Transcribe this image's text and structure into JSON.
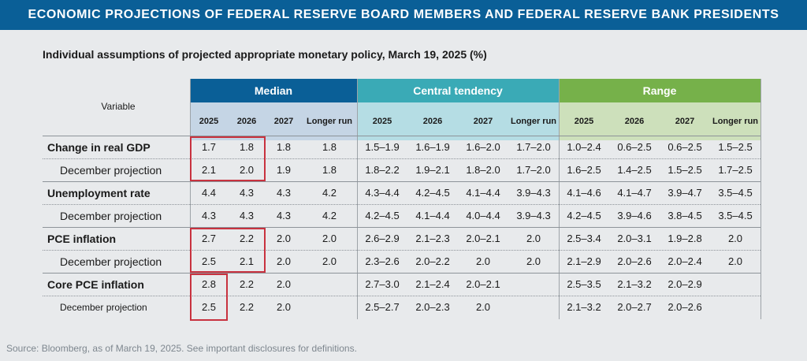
{
  "banner": {
    "title": "ECONOMIC PROJECTIONS OF FEDERAL RESERVE BOARD MEMBERS AND FEDERAL RESERVE BANK PRESIDENTS"
  },
  "subtitle": "Individual assumptions of projected appropriate monetary policy, March 19, 2025 (%)",
  "variable_header": "Variable",
  "source": "Source: Bloomberg, as of March 19, 2025.  See important disclosures for definitions.",
  "chart_data": {
    "type": "table",
    "groups": [
      {
        "name": "Median",
        "color": "#0a5f97",
        "columns": [
          "2025",
          "2026",
          "2027",
          "Longer run"
        ]
      },
      {
        "name": "Central tendency",
        "color": "#3aaab6",
        "columns": [
          "2025",
          "2026",
          "2027",
          "Longer run"
        ]
      },
      {
        "name": "Range",
        "color": "#76b14a",
        "columns": [
          "2025",
          "2026",
          "2027",
          "Longer run"
        ]
      }
    ],
    "rows": [
      {
        "label": "Change in real GDP",
        "bold": true,
        "median": [
          "1.7",
          "1.8",
          "1.8",
          "1.8"
        ],
        "central": [
          "1.5–1.9",
          "1.6–1.9",
          "1.6–2.0",
          "1.7–2.0"
        ],
        "range": [
          "1.0–2.4",
          "0.6–2.5",
          "0.6–2.5",
          "1.5–2.5"
        ]
      },
      {
        "label": "December projection",
        "bold": false,
        "median": [
          "2.1",
          "2.0",
          "1.9",
          "1.8"
        ],
        "central": [
          "1.8–2.2",
          "1.9–2.1",
          "1.8–2.0",
          "1.7–2.0"
        ],
        "range": [
          "1.6–2.5",
          "1.4–2.5",
          "1.5–2.5",
          "1.7–2.5"
        ]
      },
      {
        "label": "Unemployment rate",
        "bold": true,
        "median": [
          "4.4",
          "4.3",
          "4.3",
          "4.2"
        ],
        "central": [
          "4.3–4.4",
          "4.2–4.5",
          "4.1–4.4",
          "3.9–4.3"
        ],
        "range": [
          "4.1–4.6",
          "4.1–4.7",
          "3.9–4.7",
          "3.5–4.5"
        ]
      },
      {
        "label": "December projection",
        "bold": false,
        "median": [
          "4.3",
          "4.3",
          "4.3",
          "4.2"
        ],
        "central": [
          "4.2–4.5",
          "4.1–4.4",
          "4.0–4.4",
          "3.9–4.3"
        ],
        "range": [
          "4.2–4.5",
          "3.9–4.6",
          "3.8–4.5",
          "3.5–4.5"
        ]
      },
      {
        "label": "PCE inflation",
        "bold": true,
        "median": [
          "2.7",
          "2.2",
          "2.0",
          "2.0"
        ],
        "central": [
          "2.6–2.9",
          "2.1–2.3",
          "2.0–2.1",
          "2.0"
        ],
        "range": [
          "2.5–3.4",
          "2.0–3.1",
          "1.9–2.8",
          "2.0"
        ]
      },
      {
        "label": "December projection",
        "bold": false,
        "median": [
          "2.5",
          "2.1",
          "2.0",
          "2.0"
        ],
        "central": [
          "2.3–2.6",
          "2.0–2.2",
          "2.0",
          "2.0"
        ],
        "range": [
          "2.1–2.9",
          "2.0–2.6",
          "2.0–2.4",
          "2.0"
        ]
      },
      {
        "label": "Core PCE inflation",
        "bold": true,
        "median": [
          "2.8",
          "2.2",
          "2.0",
          ""
        ],
        "central": [
          "2.7–3.0",
          "2.1–2.4",
          "2.0–2.1",
          ""
        ],
        "range": [
          "2.5–3.5",
          "2.1–3.2",
          "2.0–2.9",
          ""
        ]
      },
      {
        "label": "December projection",
        "bold": false,
        "small": true,
        "median": [
          "2.5",
          "2.2",
          "2.0",
          ""
        ],
        "central": [
          "2.5–2.7",
          "2.0–2.3",
          "2.0",
          ""
        ],
        "range": [
          "2.1–3.2",
          "2.0–2.7",
          "2.0–2.6",
          ""
        ]
      }
    ],
    "highlights": [
      {
        "rows": [
          0,
          1
        ],
        "group": "median",
        "columns": [
          0,
          1
        ]
      },
      {
        "rows": [
          4,
          5
        ],
        "group": "median",
        "columns": [
          0,
          1
        ]
      },
      {
        "rows": [
          6,
          7
        ],
        "group": "median",
        "columns": [
          0
        ]
      }
    ],
    "highlight_color": "#c8323f"
  }
}
